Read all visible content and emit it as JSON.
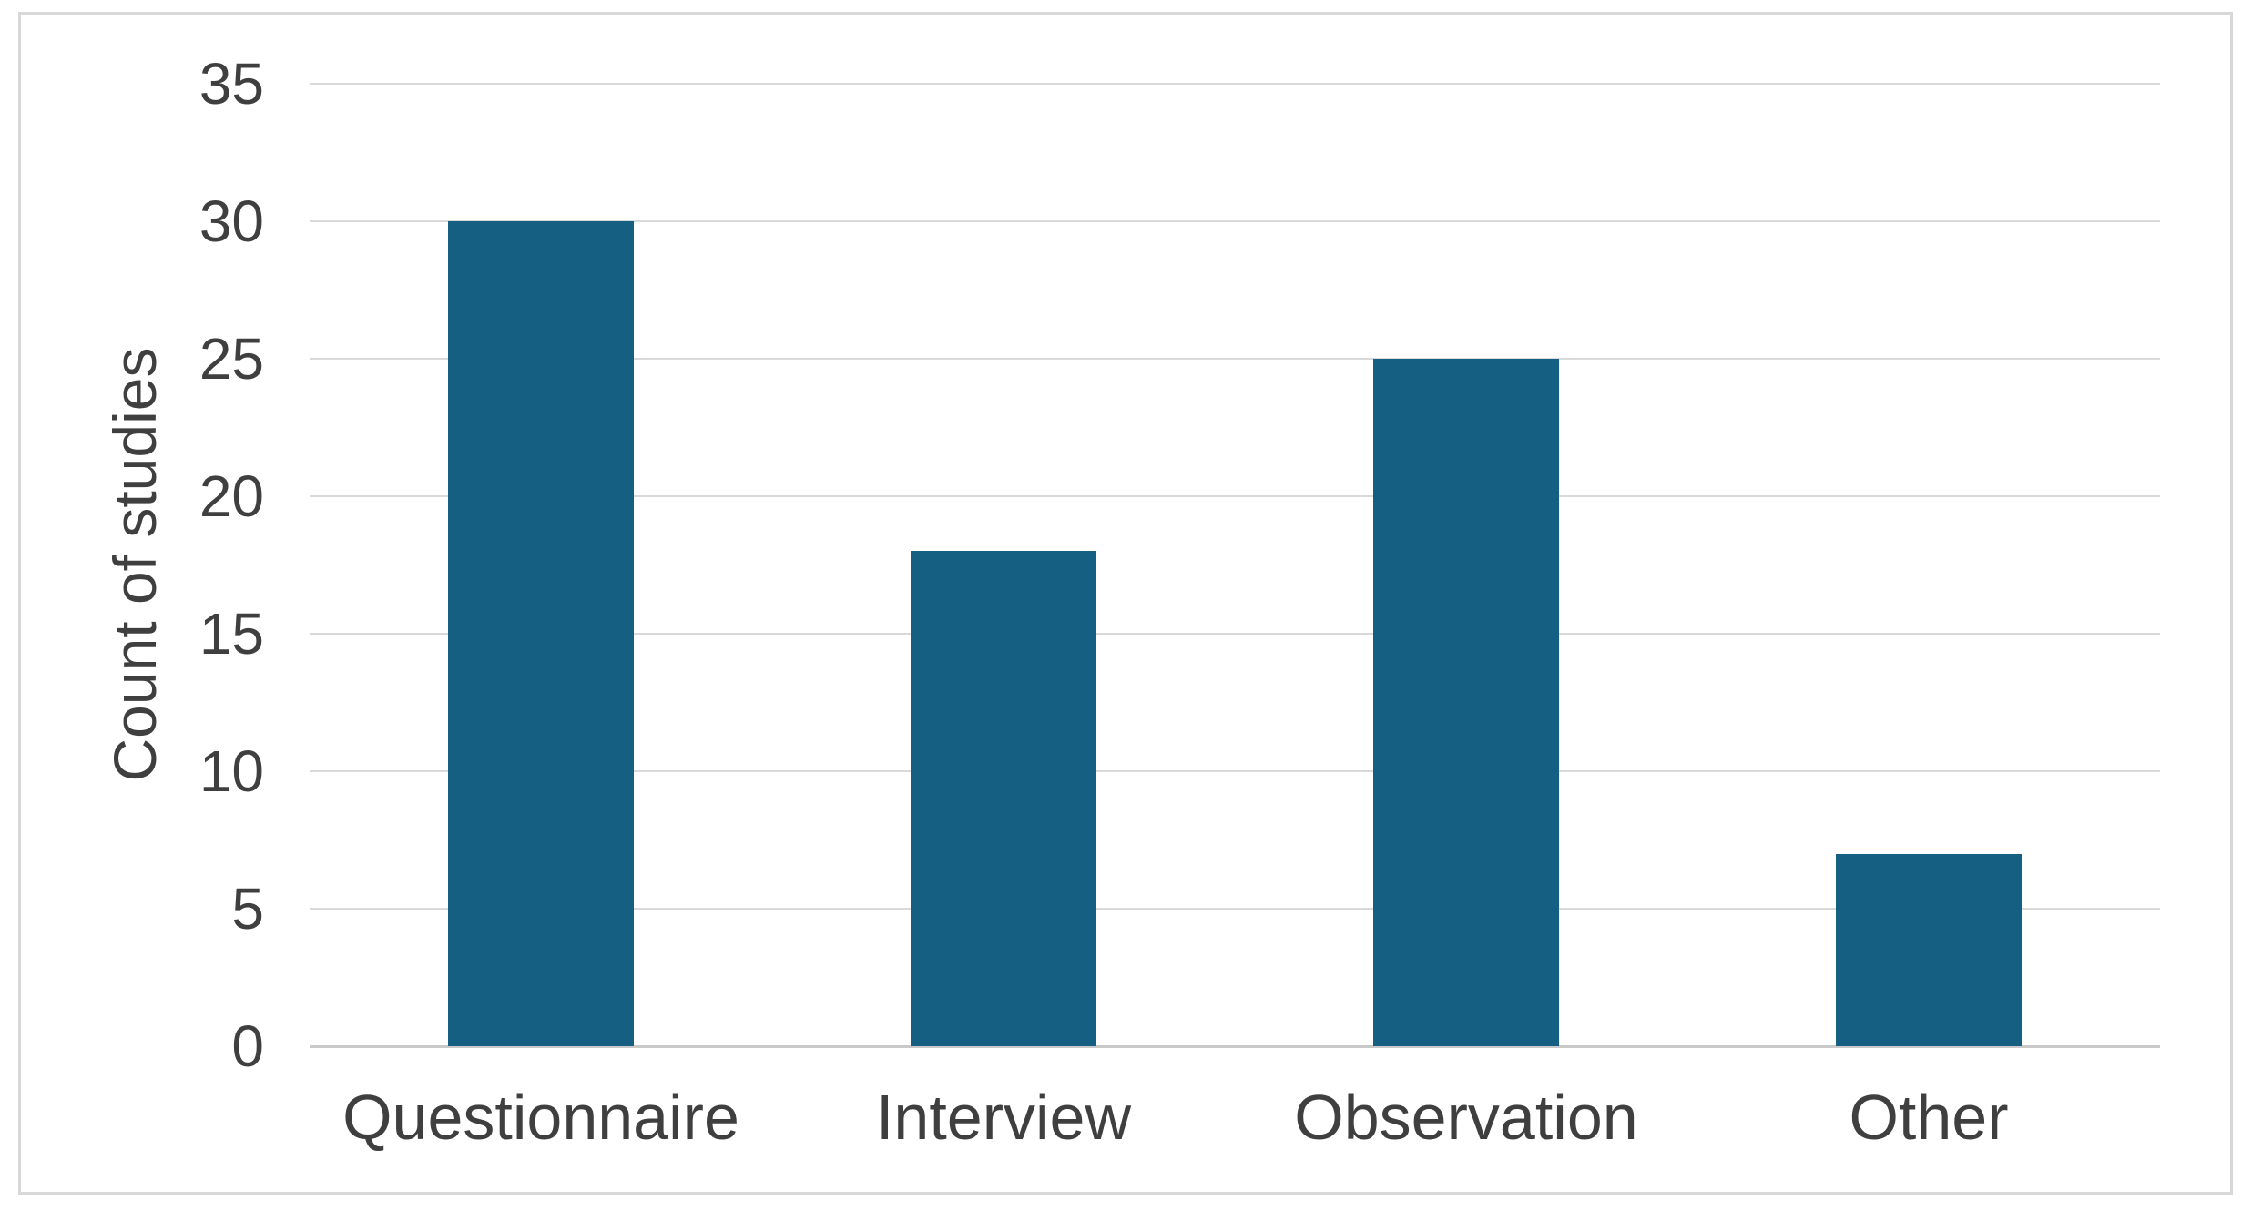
{
  "chart_data": {
    "type": "bar",
    "title": "",
    "categories": [
      "Questionnaire",
      "Interview",
      "Observation",
      "Other"
    ],
    "values": [
      30,
      18,
      25,
      7
    ],
    "xlabel": "",
    "ylabel": "Count of studies",
    "ylim": [
      0,
      35
    ],
    "ytick_step": 5,
    "yticks": [
      0,
      5,
      10,
      15,
      20,
      25,
      30,
      35
    ],
    "grid": "horizontal",
    "legend_position": "none",
    "colors": {
      "bar": "#156082",
      "gridline": "#D9D9D9",
      "axis_line": "#C9C9C9",
      "text": "#3F3F3F",
      "frame_border": "#D8D8D8",
      "background": "#FFFFFF"
    }
  }
}
